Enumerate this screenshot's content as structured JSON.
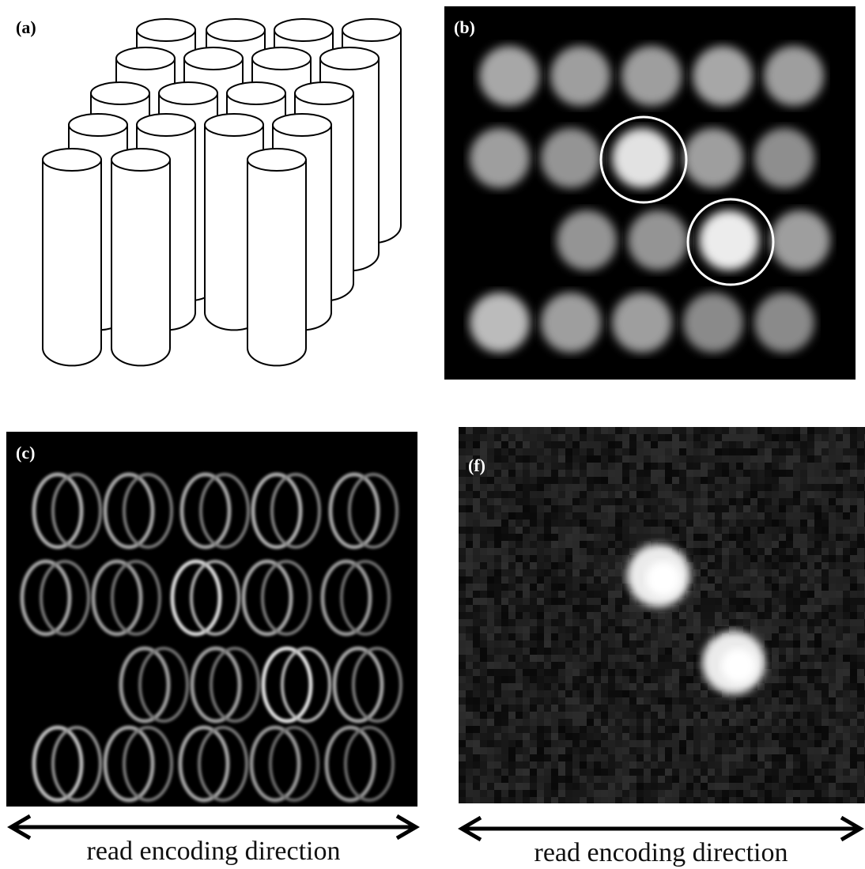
{
  "figure": {
    "panels": [
      {
        "label": "(a)"
      },
      {
        "label": "(b)"
      },
      {
        "label": "(c)",
        "caption": "read encoding direction"
      },
      {
        "label": "(f)",
        "caption": "read encoding direction"
      }
    ]
  },
  "panel_b_intensity_grid": [
    [
      0.55,
      0.5,
      0.5,
      0.55,
      0.5
    ],
    [
      0.5,
      0.45,
      0.85,
      0.5,
      0.42
    ],
    [
      0.0,
      0.45,
      0.45,
      0.9,
      0.5
    ],
    [
      0.65,
      0.5,
      0.5,
      0.4,
      0.4
    ]
  ],
  "panel_b_circled": [
    [
      1,
      2
    ],
    [
      2,
      3
    ]
  ],
  "panel_f_bright": [
    [
      1,
      2
    ],
    [
      2,
      3
    ]
  ],
  "colors": {
    "background": "#000000",
    "ink": "#000000",
    "highlight": "#ffffff"
  }
}
